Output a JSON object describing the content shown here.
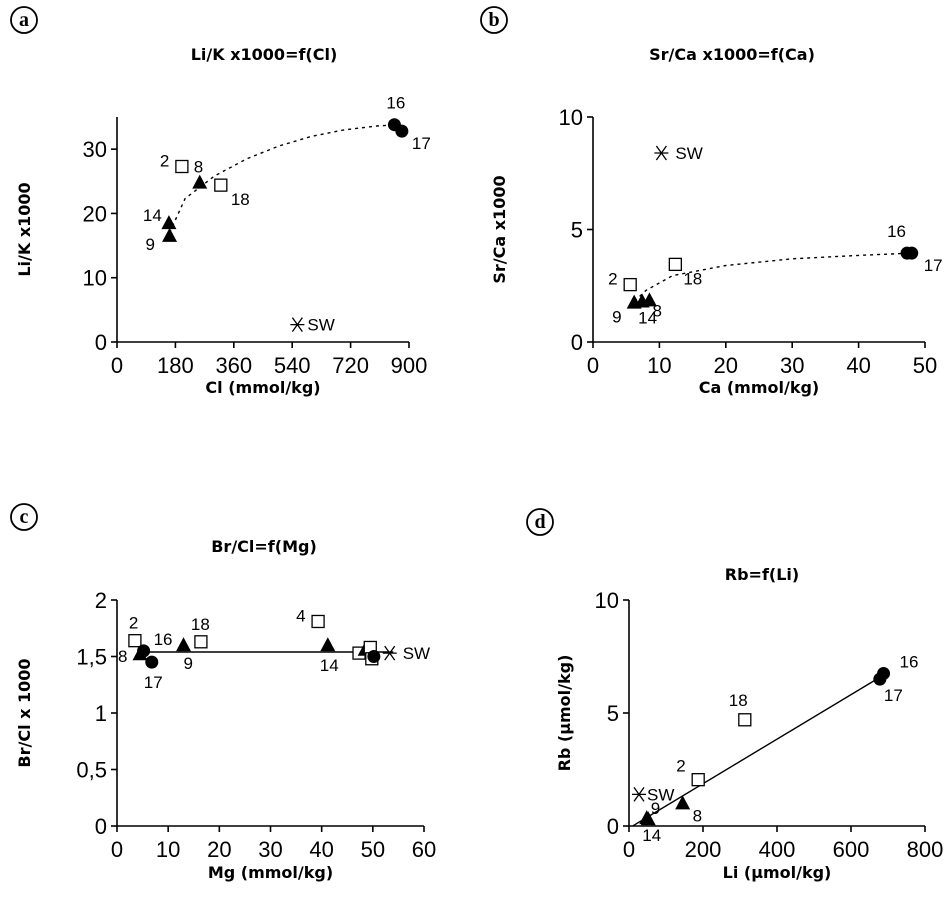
{
  "chart_data": [
    {
      "panel": "a",
      "type": "scatter",
      "title": "Li/K x1000=f(Cl)",
      "xlabel": "Cl (mmol/kg)",
      "ylabel": "Li/K x1000",
      "xlim": [
        0,
        900
      ],
      "ylim": [
        0,
        35
      ],
      "xticks": [
        "0",
        "180",
        "360",
        "540",
        "720",
        "900"
      ],
      "yticks": [
        "0",
        "10",
        "20",
        "30"
      ],
      "xtick_values": [
        0,
        180,
        360,
        540,
        720,
        900
      ],
      "ytick_values": [
        0,
        10,
        20,
        30
      ],
      "fit": "dotted-curve",
      "points": [
        {
          "label": "2",
          "x": 200,
          "y": 27.3,
          "marker": "square"
        },
        {
          "label": "8",
          "x": 255,
          "y": 24.8,
          "marker": "triangle"
        },
        {
          "label": "18",
          "x": 320,
          "y": 24.4,
          "marker": "square"
        },
        {
          "label": "14",
          "x": 160,
          "y": 18.5,
          "marker": "triangle"
        },
        {
          "label": "9",
          "x": 162,
          "y": 16.5,
          "marker": "triangle"
        },
        {
          "label": "16",
          "x": 855,
          "y": 33.8,
          "marker": "circle"
        },
        {
          "label": "17",
          "x": 878,
          "y": 32.8,
          "marker": "circle"
        },
        {
          "label": "SW",
          "x": 556,
          "y": 2.7,
          "marker": "asterisk"
        }
      ],
      "fit_points": [
        [
          162,
          17
        ],
        [
          210,
          22.3
        ],
        [
          300,
          25.8
        ],
        [
          400,
          28.5
        ],
        [
          500,
          30.5
        ],
        [
          600,
          32.0
        ],
        [
          700,
          33.0
        ],
        [
          800,
          33.6
        ],
        [
          870,
          33.8
        ]
      ]
    },
    {
      "panel": "b",
      "type": "scatter",
      "title": "Sr/Ca x1000=f(Ca)",
      "xlabel": "Ca (mmol/kg)",
      "ylabel": "Sr/Ca x1000",
      "xlim": [
        0,
        50
      ],
      "ylim": [
        0,
        10
      ],
      "xticks": [
        "0",
        "10",
        "20",
        "30",
        "40",
        "50"
      ],
      "yticks": [
        "0",
        "5",
        "10"
      ],
      "xtick_values": [
        0,
        10,
        20,
        30,
        40,
        50
      ],
      "ytick_values": [
        0,
        5,
        10
      ],
      "fit": "dotted-curve",
      "points": [
        {
          "label": "2",
          "x": 5.6,
          "y": 2.55,
          "marker": "square"
        },
        {
          "label": "18",
          "x": 12.4,
          "y": 3.45,
          "marker": "square"
        },
        {
          "label": "9",
          "x": 6.2,
          "y": 1.75,
          "marker": "triangle"
        },
        {
          "label": "14",
          "x": 7.4,
          "y": 1.8,
          "marker": "triangle"
        },
        {
          "label": "8",
          "x": 8.5,
          "y": 1.85,
          "marker": "triangle"
        },
        {
          "label": "16",
          "x": 47.3,
          "y": 3.95,
          "marker": "circle"
        },
        {
          "label": "17",
          "x": 48.0,
          "y": 3.95,
          "marker": "circle"
        },
        {
          "label": "SW",
          "x": 10.3,
          "y": 8.4,
          "marker": "asterisk"
        }
      ],
      "fit_points": [
        [
          5.5,
          1.6
        ],
        [
          8,
          2.3
        ],
        [
          12,
          2.95
        ],
        [
          20,
          3.4
        ],
        [
          30,
          3.7
        ],
        [
          40,
          3.85
        ],
        [
          48,
          3.95
        ]
      ]
    },
    {
      "panel": "c",
      "type": "scatter",
      "title": "Br/Cl=f(Mg)",
      "xlabel": "Mg (mmol/kg)",
      "ylabel": "Br/Cl x 1000",
      "xlim": [
        0,
        60
      ],
      "ylim": [
        0,
        2
      ],
      "xticks": [
        "0",
        "10",
        "20",
        "30",
        "40",
        "50",
        "60"
      ],
      "yticks": [
        "0",
        "0,5",
        "1",
        "1,5",
        "2"
      ],
      "xtick_values": [
        0,
        10,
        20,
        30,
        40,
        50,
        60
      ],
      "ytick_values": [
        0,
        0.5,
        1,
        1.5,
        2
      ],
      "fit": "solid-line",
      "points": [
        {
          "label": "2",
          "x": 3.5,
          "y": 1.64,
          "marker": "square"
        },
        {
          "label": "8",
          "x": 4.5,
          "y": 1.52,
          "marker": "triangle"
        },
        {
          "label": "16",
          "x": 5.2,
          "y": 1.55,
          "marker": "circle"
        },
        {
          "label": "17",
          "x": 6.8,
          "y": 1.45,
          "marker": "circle"
        },
        {
          "label": "9",
          "x": 13.0,
          "y": 1.6,
          "marker": "triangle"
        },
        {
          "label": "18",
          "x": 16.4,
          "y": 1.63,
          "marker": "square"
        },
        {
          "label": "4",
          "x": 39.3,
          "y": 1.81,
          "marker": "square"
        },
        {
          "label": "14",
          "x": 41.2,
          "y": 1.6,
          "marker": "triangle"
        },
        {
          "label": "",
          "x": 47.3,
          "y": 1.53,
          "marker": "square"
        },
        {
          "label": "",
          "x": 48.5,
          "y": 1.56,
          "marker": "triangle"
        },
        {
          "label": "",
          "x": 49.5,
          "y": 1.58,
          "marker": "square"
        },
        {
          "label": "",
          "x": 49.8,
          "y": 1.48,
          "marker": "square"
        },
        {
          "label": "",
          "x": 50.2,
          "y": 1.5,
          "marker": "circle"
        },
        {
          "label": "SW",
          "x": 53.3,
          "y": 1.53,
          "marker": "asterisk"
        }
      ],
      "fit_points": [
        [
          4.5,
          1.54
        ],
        [
          54,
          1.54
        ]
      ]
    },
    {
      "panel": "d",
      "type": "scatter",
      "title": "Rb=f(Li)",
      "xlabel": "Li (µmol/kg)",
      "ylabel": "Rb (µmol/kg)",
      "xlim": [
        0,
        800
      ],
      "ylim": [
        0,
        10
      ],
      "xticks": [
        "0",
        "200",
        "400",
        "600",
        "800"
      ],
      "yticks": [
        "0",
        "5",
        "10"
      ],
      "xtick_values": [
        0,
        200,
        400,
        600,
        800
      ],
      "ytick_values": [
        0,
        5,
        10
      ],
      "fit": "solid-line",
      "points": [
        {
          "label": "SW",
          "x": 27,
          "y": 1.4,
          "marker": "asterisk"
        },
        {
          "label": "9",
          "x": 48,
          "y": 0.35,
          "marker": "triangle"
        },
        {
          "label": "14",
          "x": 52,
          "y": 0.3,
          "marker": "triangle"
        },
        {
          "label": "8",
          "x": 145,
          "y": 1.0,
          "marker": "triangle"
        },
        {
          "label": "2",
          "x": 187,
          "y": 2.05,
          "marker": "square"
        },
        {
          "label": "18",
          "x": 313,
          "y": 4.7,
          "marker": "square"
        },
        {
          "label": "17",
          "x": 678,
          "y": 6.5,
          "marker": "circle"
        },
        {
          "label": "16",
          "x": 688,
          "y": 6.75,
          "marker": "circle"
        }
      ],
      "fit_points": [
        [
          10,
          0
        ],
        [
          690,
          6.7
        ]
      ]
    }
  ]
}
